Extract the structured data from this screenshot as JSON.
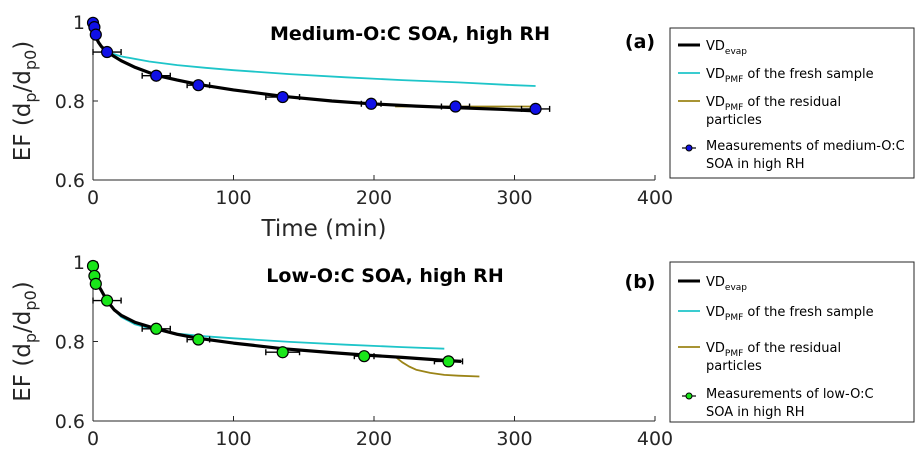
{
  "chart_data": [
    {
      "type": "line",
      "title": "Medium-O:C SOA, high RH",
      "panel_label": "(a)",
      "xlabel": "Time (min)",
      "ylabel": {
        "main": "EF (d",
        "sub1": "p",
        "mid": "/d",
        "sub2": "p0",
        "end": ")"
      },
      "xlim": [
        0,
        400
      ],
      "ylim": [
        0.6,
        1.0
      ],
      "xticks": [
        "0",
        "100",
        "200",
        "300",
        "400"
      ],
      "yticks": [
        "0.6",
        "0.8",
        "1"
      ],
      "show_xlabel": true,
      "marker_color": "#1010e6",
      "series": [
        {
          "kind": "VD_evap",
          "color": "#000000",
          "x": [
            0,
            1,
            2,
            4,
            6,
            10,
            20,
            30,
            45,
            60,
            75,
            100,
            135,
            170,
            198,
            230,
            258,
            290,
            315
          ],
          "y": [
            1.0,
            0.975,
            0.962,
            0.948,
            0.938,
            0.924,
            0.902,
            0.885,
            0.865,
            0.853,
            0.842,
            0.828,
            0.812,
            0.8,
            0.793,
            0.787,
            0.783,
            0.779,
            0.775
          ]
        },
        {
          "kind": "VD_PMF_fresh",
          "color": "#1ec5c9",
          "x": [
            10,
            20,
            40,
            60,
            80,
            100,
            140,
            180,
            220,
            260,
            300,
            315
          ],
          "y": [
            0.924,
            0.913,
            0.9,
            0.891,
            0.884,
            0.878,
            0.868,
            0.86,
            0.853,
            0.847,
            0.84,
            0.838
          ]
        },
        {
          "kind": "VD_PMF_residual",
          "color": "#9b8417",
          "x": [
            215,
            240,
            270,
            300,
            315
          ],
          "y": [
            0.786,
            0.786,
            0.786,
            0.786,
            0.786
          ]
        },
        {
          "kind": "measurements",
          "x": [
            0,
            1,
            2,
            10,
            45,
            75,
            135,
            198,
            258,
            315
          ],
          "y": [
            0.998,
            0.987,
            0.968,
            0.924,
            0.864,
            0.84,
            0.81,
            0.793,
            0.786,
            0.78
          ],
          "xerr": [
            0,
            0,
            0,
            10,
            10,
            8,
            12,
            7,
            10,
            10
          ]
        }
      ],
      "legend": {
        "placement": "right",
        "entries": [
          {
            "kind": "VD_evap",
            "lines": [
              {
                "pre": "VD",
                "sub": "evap",
                "post": ""
              }
            ]
          },
          {
            "kind": "VD_PMF_fresh",
            "lines": [
              {
                "pre": "VD",
                "sub": "PMF",
                "post": " of the fresh sample"
              }
            ]
          },
          {
            "kind": "VD_PMF_residual",
            "lines": [
              {
                "pre": "VD",
                "sub": "PMF",
                "post": " of the residual"
              },
              {
                "pre": "particles",
                "sub": "",
                "post": ""
              }
            ]
          },
          {
            "kind": "measurements",
            "lines": [
              {
                "pre": "Measurements of medium-O:C",
                "sub": "",
                "post": ""
              },
              {
                "pre": "SOA in high RH",
                "sub": "",
                "post": ""
              }
            ]
          }
        ]
      }
    },
    {
      "type": "line",
      "title": "Low-O:C SOA, high RH",
      "panel_label": "(b)",
      "xlabel": "",
      "ylabel": {
        "main": "EF (d",
        "sub1": "p",
        "mid": "/d",
        "sub2": "p0",
        "end": ")"
      },
      "xlim": [
        0,
        400
      ],
      "ylim": [
        0.6,
        1.0
      ],
      "xticks": [
        "0",
        "100",
        "200",
        "300",
        "400"
      ],
      "yticks": [
        "0.6",
        "0.8",
        "1"
      ],
      "show_xlabel": false,
      "marker_color": "#19e619",
      "series": [
        {
          "kind": "VD_evap",
          "color": "#000000",
          "x": [
            0,
            1,
            2,
            4,
            6,
            10,
            15,
            20,
            30,
            45,
            60,
            75,
            100,
            135,
            170,
            193,
            220,
            253,
            262
          ],
          "y": [
            0.99,
            0.97,
            0.955,
            0.94,
            0.928,
            0.903,
            0.88,
            0.866,
            0.848,
            0.832,
            0.818,
            0.808,
            0.796,
            0.782,
            0.772,
            0.766,
            0.76,
            0.752,
            0.75
          ]
        },
        {
          "kind": "VD_PMF_fresh",
          "color": "#1ec5c9",
          "x": [
            10,
            15,
            20,
            30,
            45,
            60,
            80,
            100,
            140,
            180,
            220,
            250
          ],
          "y": [
            0.903,
            0.88,
            0.862,
            0.843,
            0.829,
            0.82,
            0.813,
            0.808,
            0.799,
            0.792,
            0.786,
            0.782
          ]
        },
        {
          "kind": "VD_PMF_residual",
          "color": "#9b8417",
          "x": [
            215,
            220,
            225,
            230,
            240,
            250,
            260,
            275
          ],
          "y": [
            0.762,
            0.748,
            0.737,
            0.729,
            0.721,
            0.716,
            0.714,
            0.712
          ]
        },
        {
          "kind": "measurements",
          "x": [
            0,
            1,
            2,
            10,
            45,
            75,
            135,
            193,
            253
          ],
          "y": [
            0.99,
            0.965,
            0.945,
            0.903,
            0.832,
            0.805,
            0.773,
            0.763,
            0.75
          ],
          "xerr": [
            0,
            0,
            0,
            10,
            10,
            8,
            12,
            7,
            10
          ]
        }
      ],
      "legend": {
        "placement": "right",
        "entries": [
          {
            "kind": "VD_evap",
            "lines": [
              {
                "pre": "VD",
                "sub": "evap",
                "post": ""
              }
            ]
          },
          {
            "kind": "VD_PMF_fresh",
            "lines": [
              {
                "pre": "VD",
                "sub": "PMF",
                "post": " of the fresh sample"
              }
            ]
          },
          {
            "kind": "VD_PMF_residual",
            "lines": [
              {
                "pre": "VD",
                "sub": "PMF",
                "post": " of the residual"
              },
              {
                "pre": "particles",
                "sub": "",
                "post": ""
              }
            ]
          },
          {
            "kind": "measurements",
            "lines": [
              {
                "pre": "Measurements of low-O:C",
                "sub": "",
                "post": ""
              },
              {
                "pre": "SOA in high RH",
                "sub": "",
                "post": ""
              }
            ]
          }
        ]
      }
    }
  ]
}
